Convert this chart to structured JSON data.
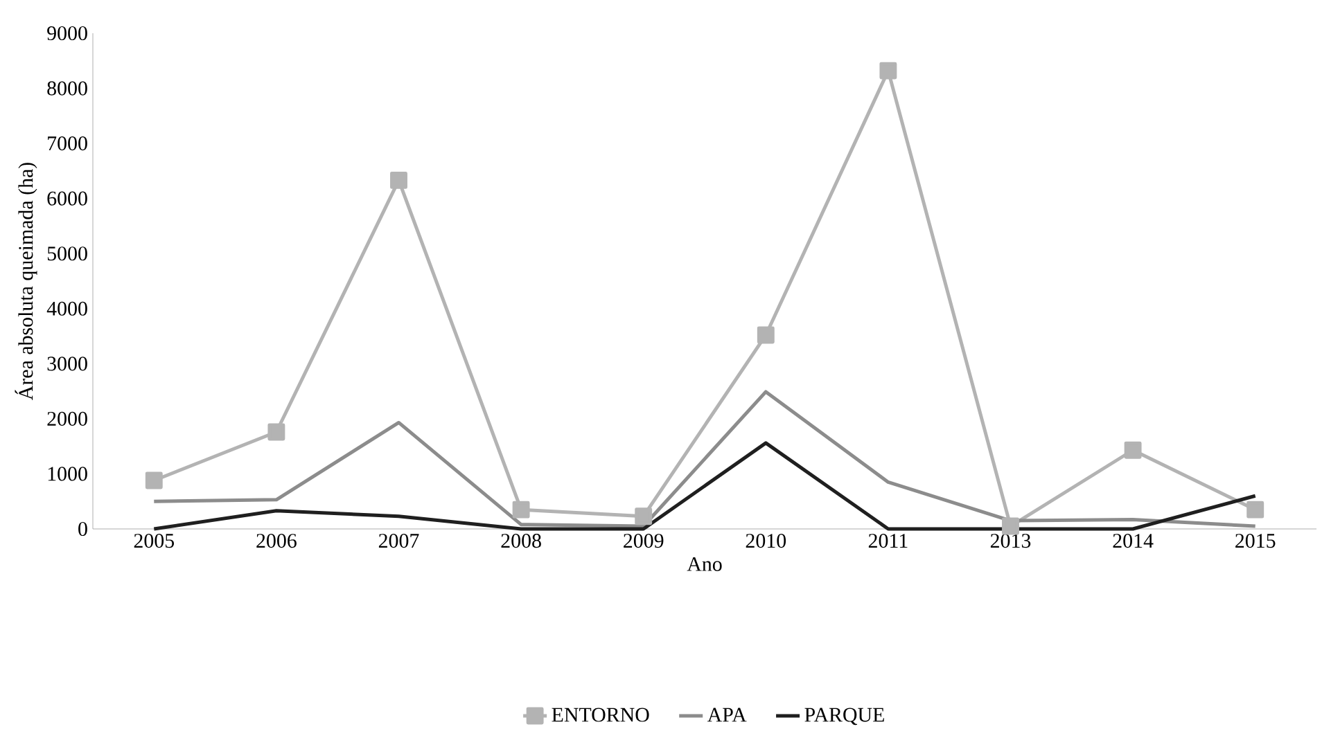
{
  "chart_data": {
    "type": "line",
    "xlabel": "Ano",
    "ylabel": "Área absoluta queimada (ha)",
    "categories": [
      "2005",
      "2006",
      "2007",
      "2008",
      "2009",
      "2010",
      "2011",
      "2013",
      "2014",
      "2015"
    ],
    "series": [
      {
        "name": "ENTORNO",
        "color": "#b3b3b3",
        "marker": "square",
        "values": [
          880,
          1760,
          6330,
          350,
          230,
          3520,
          8320,
          50,
          1430,
          350
        ]
      },
      {
        "name": "APA",
        "color": "#8c8c8c",
        "marker": "none",
        "values": [
          500,
          530,
          1930,
          80,
          50,
          2490,
          850,
          150,
          170,
          50
        ]
      },
      {
        "name": "PARQUE",
        "color": "#1f1f1f",
        "marker": "none",
        "values": [
          0,
          330,
          230,
          0,
          0,
          1560,
          0,
          0,
          0,
          600
        ]
      }
    ],
    "ylim": [
      0,
      9000
    ],
    "yticks": [
      0,
      1000,
      2000,
      3000,
      4000,
      5000,
      6000,
      7000,
      8000,
      9000
    ],
    "grid": false,
    "legend": "bottom",
    "line_style": "solid"
  }
}
